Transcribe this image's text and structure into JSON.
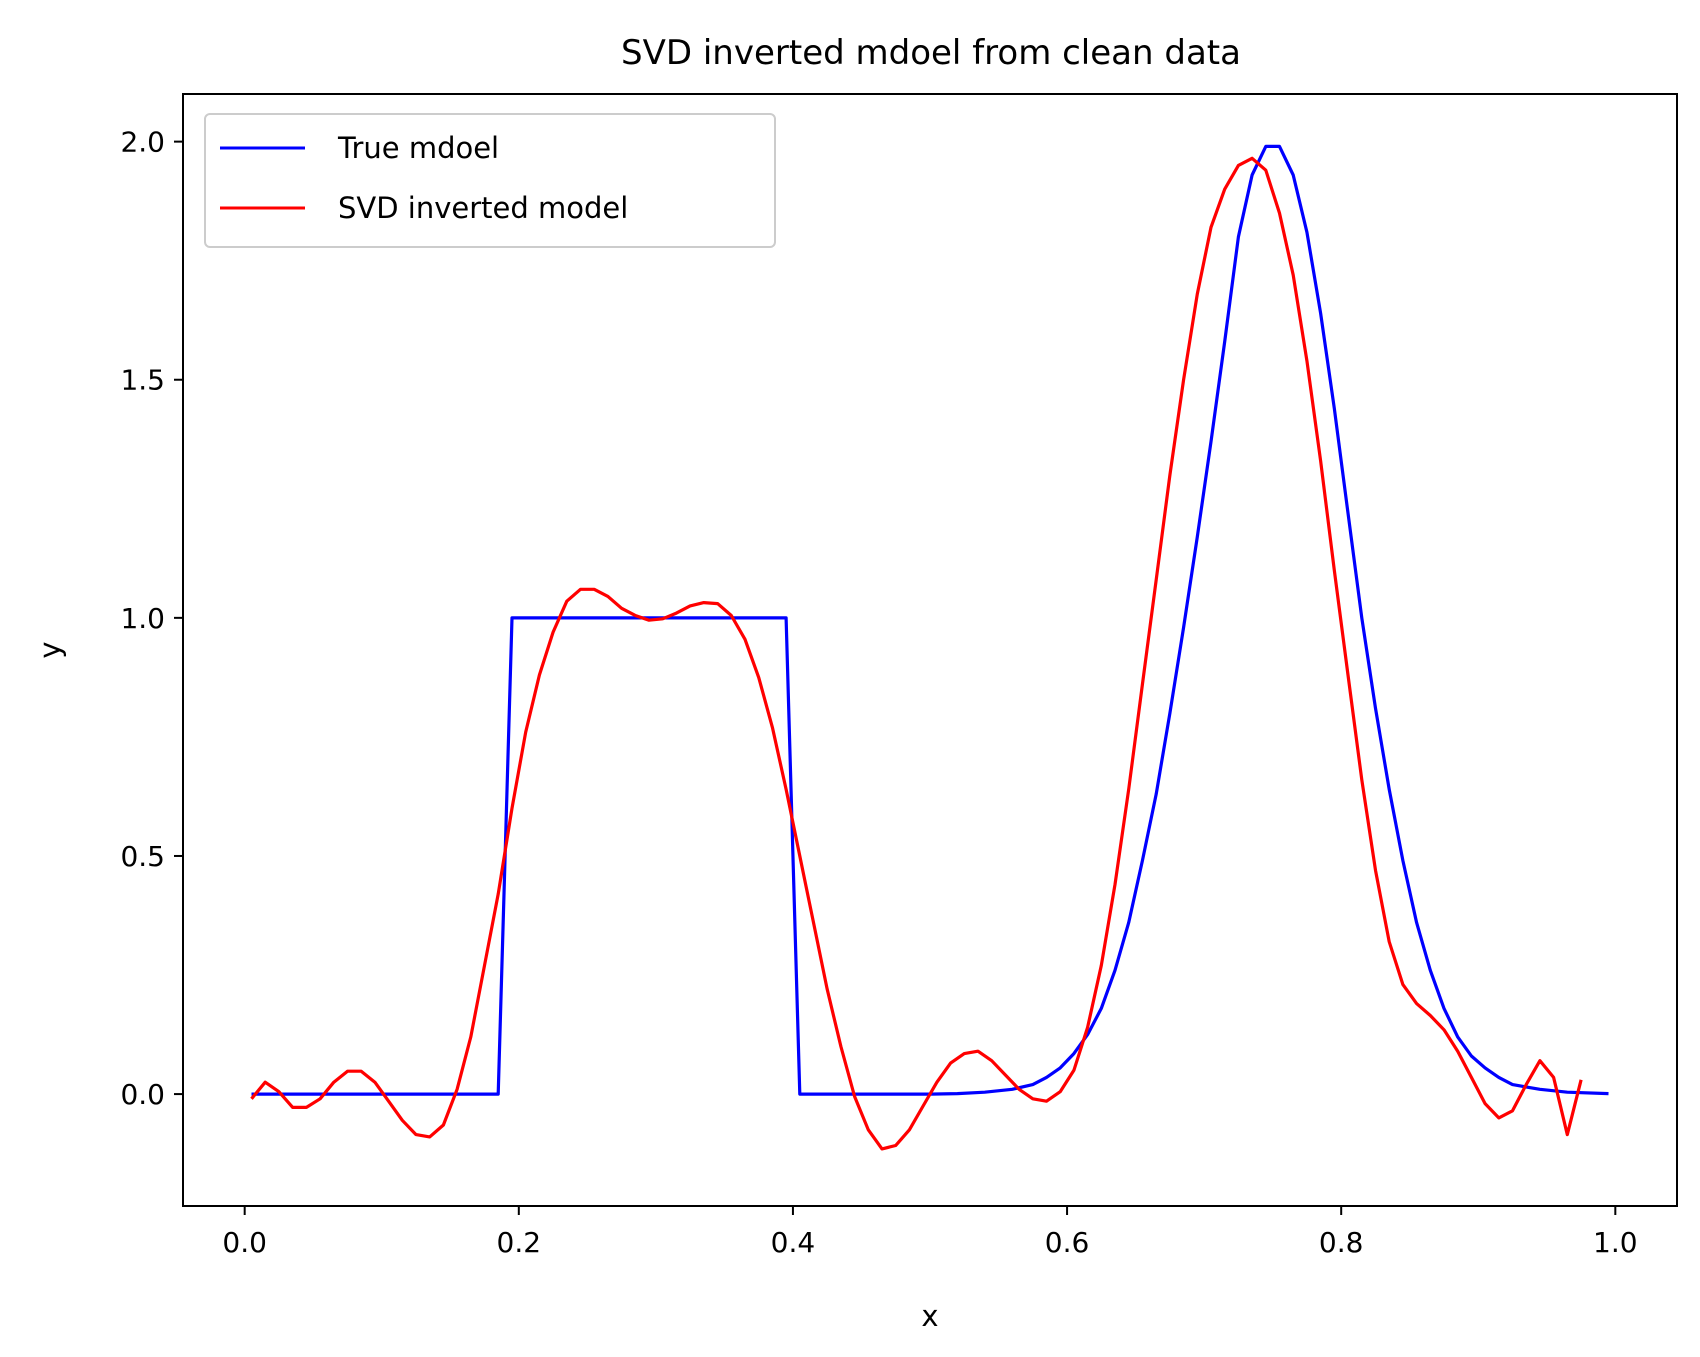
{
  "chart_data": {
    "type": "line",
    "title": "SVD inverted mdoel from clean data",
    "xlabel": "x",
    "ylabel": "y",
    "xlim": [
      -0.045,
      1.045
    ],
    "ylim": [
      -0.235,
      2.1
    ],
    "xticks": [
      0.0,
      0.2,
      0.4,
      0.6,
      0.8,
      1.0
    ],
    "xtick_labels": [
      "0.0",
      "0.2",
      "0.4",
      "0.6",
      "0.8",
      "1.0"
    ],
    "yticks": [
      0.0,
      0.5,
      1.0,
      1.5,
      2.0
    ],
    "ytick_labels": [
      "0.0",
      "0.5",
      "1.0",
      "1.5",
      "2.0"
    ],
    "grid": false,
    "legend": {
      "placement": "upper-left",
      "entries": [
        "True mdoel",
        "SVD inverted model"
      ]
    },
    "series": [
      {
        "name": "True mdoel",
        "color": "#0000ff",
        "points": [
          [
            0.005,
            0.0
          ],
          [
            0.185,
            0.0
          ],
          [
            0.195,
            1.0
          ],
          [
            0.395,
            1.0
          ],
          [
            0.405,
            0.0
          ],
          [
            0.5,
            0.0
          ],
          [
            0.52,
            0.001
          ],
          [
            0.54,
            0.004
          ],
          [
            0.56,
            0.01
          ],
          [
            0.575,
            0.02
          ],
          [
            0.585,
            0.035
          ],
          [
            0.595,
            0.055
          ],
          [
            0.605,
            0.085
          ],
          [
            0.615,
            0.125
          ],
          [
            0.625,
            0.18
          ],
          [
            0.635,
            0.26
          ],
          [
            0.645,
            0.36
          ],
          [
            0.655,
            0.49
          ],
          [
            0.665,
            0.63
          ],
          [
            0.675,
            0.8
          ],
          [
            0.685,
            0.98
          ],
          [
            0.695,
            1.17
          ],
          [
            0.705,
            1.37
          ],
          [
            0.715,
            1.58
          ],
          [
            0.725,
            1.8
          ],
          [
            0.735,
            1.93
          ],
          [
            0.745,
            1.99
          ],
          [
            0.755,
            1.99
          ],
          [
            0.765,
            1.93
          ],
          [
            0.775,
            1.81
          ],
          [
            0.785,
            1.64
          ],
          [
            0.795,
            1.44
          ],
          [
            0.805,
            1.22
          ],
          [
            0.815,
            1.0
          ],
          [
            0.825,
            0.81
          ],
          [
            0.835,
            0.64
          ],
          [
            0.845,
            0.49
          ],
          [
            0.855,
            0.36
          ],
          [
            0.865,
            0.26
          ],
          [
            0.875,
            0.18
          ],
          [
            0.885,
            0.12
          ],
          [
            0.895,
            0.08
          ],
          [
            0.905,
            0.055
          ],
          [
            0.915,
            0.035
          ],
          [
            0.925,
            0.02
          ],
          [
            0.945,
            0.01
          ],
          [
            0.965,
            0.004
          ],
          [
            0.995,
            0.001
          ]
        ]
      },
      {
        "name": "SVD inverted model",
        "color": "#ff0000",
        "points": [
          [
            0.005,
            -0.01
          ],
          [
            0.015,
            0.025
          ],
          [
            0.025,
            0.005
          ],
          [
            0.035,
            -0.028
          ],
          [
            0.045,
            -0.028
          ],
          [
            0.055,
            -0.01
          ],
          [
            0.065,
            0.025
          ],
          [
            0.075,
            0.048
          ],
          [
            0.085,
            0.048
          ],
          [
            0.095,
            0.025
          ],
          [
            0.105,
            -0.015
          ],
          [
            0.115,
            -0.055
          ],
          [
            0.125,
            -0.085
          ],
          [
            0.135,
            -0.09
          ],
          [
            0.145,
            -0.065
          ],
          [
            0.155,
            0.01
          ],
          [
            0.165,
            0.12
          ],
          [
            0.175,
            0.27
          ],
          [
            0.185,
            0.42
          ],
          [
            0.195,
            0.6
          ],
          [
            0.205,
            0.76
          ],
          [
            0.215,
            0.88
          ],
          [
            0.225,
            0.97
          ],
          [
            0.235,
            1.035
          ],
          [
            0.245,
            1.06
          ],
          [
            0.255,
            1.06
          ],
          [
            0.265,
            1.045
          ],
          [
            0.275,
            1.02
          ],
          [
            0.285,
            1.005
          ],
          [
            0.295,
            0.995
          ],
          [
            0.305,
            0.998
          ],
          [
            0.315,
            1.01
          ],
          [
            0.325,
            1.025
          ],
          [
            0.335,
            1.032
          ],
          [
            0.345,
            1.03
          ],
          [
            0.355,
            1.005
          ],
          [
            0.365,
            0.955
          ],
          [
            0.375,
            0.875
          ],
          [
            0.385,
            0.77
          ],
          [
            0.395,
            0.64
          ],
          [
            0.405,
            0.5
          ],
          [
            0.415,
            0.36
          ],
          [
            0.425,
            0.22
          ],
          [
            0.435,
            0.1
          ],
          [
            0.445,
            -0.005
          ],
          [
            0.455,
            -0.075
          ],
          [
            0.465,
            -0.115
          ],
          [
            0.475,
            -0.108
          ],
          [
            0.485,
            -0.075
          ],
          [
            0.495,
            -0.025
          ],
          [
            0.505,
            0.025
          ],
          [
            0.515,
            0.065
          ],
          [
            0.525,
            0.085
          ],
          [
            0.535,
            0.09
          ],
          [
            0.545,
            0.07
          ],
          [
            0.555,
            0.04
          ],
          [
            0.565,
            0.01
          ],
          [
            0.575,
            -0.01
          ],
          [
            0.585,
            -0.015
          ],
          [
            0.595,
            0.005
          ],
          [
            0.605,
            0.05
          ],
          [
            0.615,
            0.14
          ],
          [
            0.625,
            0.27
          ],
          [
            0.635,
            0.44
          ],
          [
            0.645,
            0.64
          ],
          [
            0.655,
            0.86
          ],
          [
            0.665,
            1.08
          ],
          [
            0.675,
            1.3
          ],
          [
            0.685,
            1.5
          ],
          [
            0.695,
            1.68
          ],
          [
            0.705,
            1.82
          ],
          [
            0.715,
            1.9
          ],
          [
            0.725,
            1.95
          ],
          [
            0.735,
            1.965
          ],
          [
            0.745,
            1.94
          ],
          [
            0.755,
            1.85
          ],
          [
            0.765,
            1.72
          ],
          [
            0.775,
            1.54
          ],
          [
            0.785,
            1.33
          ],
          [
            0.795,
            1.1
          ],
          [
            0.805,
            0.88
          ],
          [
            0.815,
            0.66
          ],
          [
            0.825,
            0.47
          ],
          [
            0.835,
            0.32
          ],
          [
            0.845,
            0.23
          ],
          [
            0.855,
            0.19
          ],
          [
            0.865,
            0.165
          ],
          [
            0.875,
            0.135
          ],
          [
            0.885,
            0.09
          ],
          [
            0.895,
            0.035
          ],
          [
            0.905,
            -0.02
          ],
          [
            0.915,
            -0.05
          ],
          [
            0.925,
            -0.035
          ],
          [
            0.935,
            0.02
          ],
          [
            0.945,
            0.07
          ],
          [
            0.955,
            0.035
          ],
          [
            0.965,
            -0.085
          ],
          [
            0.975,
            0.03
          ]
        ]
      }
    ]
  }
}
